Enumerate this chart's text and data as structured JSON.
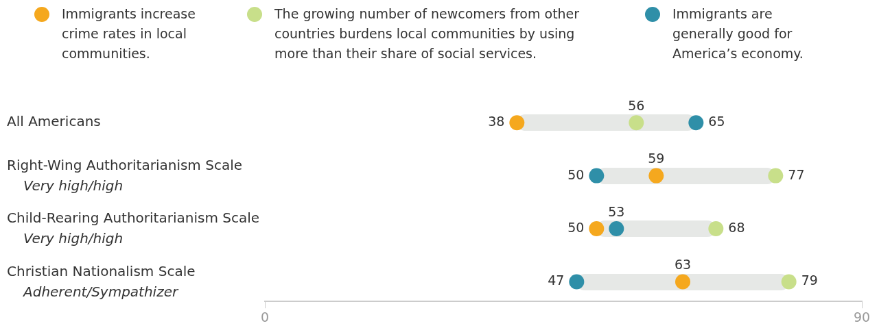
{
  "chart_data": {
    "type": "scatter",
    "categories": [
      "All Americans",
      "Right-Wing Authoritarianism Scale\nVery high/high",
      "Child-Rearing Authoritarianism Scale\nVery high/high",
      "Christian Nationalism Scale\nAdherent/Sympathizer"
    ],
    "series": [
      {
        "name": "Immigrants increase crime rates in local communities.",
        "color": "#f5a81e",
        "values": [
          38,
          59,
          50,
          63
        ]
      },
      {
        "name": "The growing number of newcomers from other countries burdens local communities by using more than their share of social services.",
        "color": "#c8df8a",
        "values": [
          56,
          77,
          68,
          79
        ]
      },
      {
        "name": "Immigrants are generally good for America’s economy.",
        "color": "#2f8fa8",
        "values": [
          65,
          50,
          53,
          47
        ]
      }
    ],
    "orientation": "horizontal",
    "xlim": [
      0,
      90
    ],
    "xticks": [
      0,
      90
    ],
    "data_labels": true,
    "legend": "top",
    "grid": false,
    "marker": "circle"
  }
}
